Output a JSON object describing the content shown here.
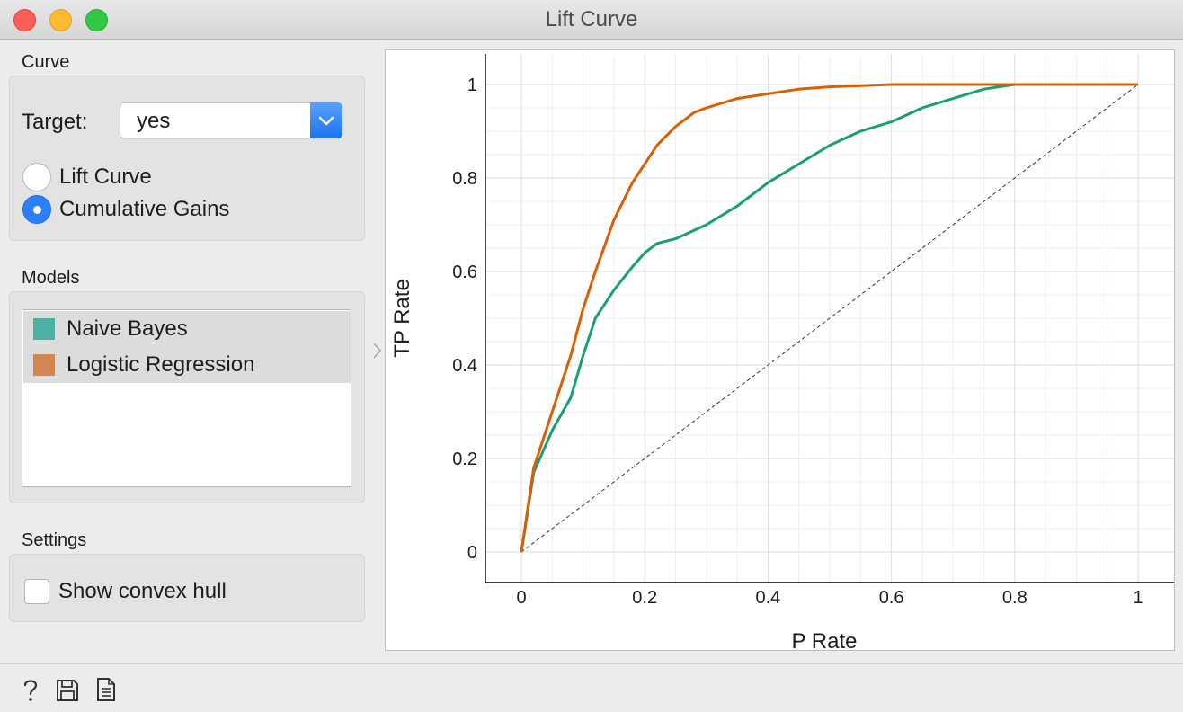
{
  "window": {
    "title": "Lift Curve"
  },
  "curve_box": {
    "section": "Curve",
    "target_label": "Target:",
    "target_value": "yes",
    "options": [
      "Lift Curve",
      "Cumulative Gains"
    ],
    "selected": "Cumulative Gains"
  },
  "models_box": {
    "section": "Models",
    "items": [
      {
        "label": "Naive Bayes",
        "color": "#4cb0a3"
      },
      {
        "label": "Logistic Regression",
        "color": "#d48650"
      }
    ]
  },
  "settings_box": {
    "section": "Settings",
    "convex_hull_label": "Show convex hull",
    "convex_hull_checked": false
  },
  "bottom_icons": [
    "help-icon",
    "save-icon",
    "report-icon"
  ],
  "chart_data": {
    "type": "line",
    "title": "",
    "xlabel": "P Rate",
    "ylabel": "TP Rate",
    "xlim": [
      0,
      1
    ],
    "ylim": [
      0,
      1
    ],
    "xticks": [
      "0",
      "0.2",
      "0.4",
      "0.6",
      "0.8",
      "1"
    ],
    "yticks": [
      "0",
      "0.2",
      "0.4",
      "0.6",
      "0.8",
      "1"
    ],
    "grid": true,
    "legend": "none",
    "series": [
      {
        "name": "Naive Bayes",
        "color": "#1a9e78",
        "x": [
          0,
          0.02,
          0.05,
          0.08,
          0.1,
          0.12,
          0.15,
          0.18,
          0.2,
          0.22,
          0.25,
          0.3,
          0.35,
          0.4,
          0.45,
          0.5,
          0.55,
          0.6,
          0.65,
          0.7,
          0.75,
          0.8,
          0.84,
          1
        ],
        "y": [
          0,
          0.17,
          0.26,
          0.33,
          0.42,
          0.5,
          0.56,
          0.61,
          0.64,
          0.66,
          0.67,
          0.7,
          0.74,
          0.79,
          0.83,
          0.87,
          0.9,
          0.92,
          0.95,
          0.97,
          0.99,
          1.0,
          1.0,
          1.0
        ]
      },
      {
        "name": "Logistic Regression",
        "color": "#d95f02",
        "x": [
          0,
          0.02,
          0.05,
          0.08,
          0.1,
          0.12,
          0.15,
          0.18,
          0.2,
          0.22,
          0.25,
          0.28,
          0.3,
          0.35,
          0.4,
          0.45,
          0.5,
          0.6,
          0.7,
          0.8,
          1
        ],
        "y": [
          0,
          0.18,
          0.3,
          0.42,
          0.52,
          0.6,
          0.71,
          0.79,
          0.83,
          0.87,
          0.91,
          0.94,
          0.95,
          0.97,
          0.98,
          0.99,
          0.995,
          1.0,
          1.0,
          1.0,
          1.0
        ]
      },
      {
        "name": "",
        "color": "#333333",
        "style": "dashed",
        "x": [
          0,
          1
        ],
        "y": [
          0,
          1
        ]
      }
    ]
  }
}
